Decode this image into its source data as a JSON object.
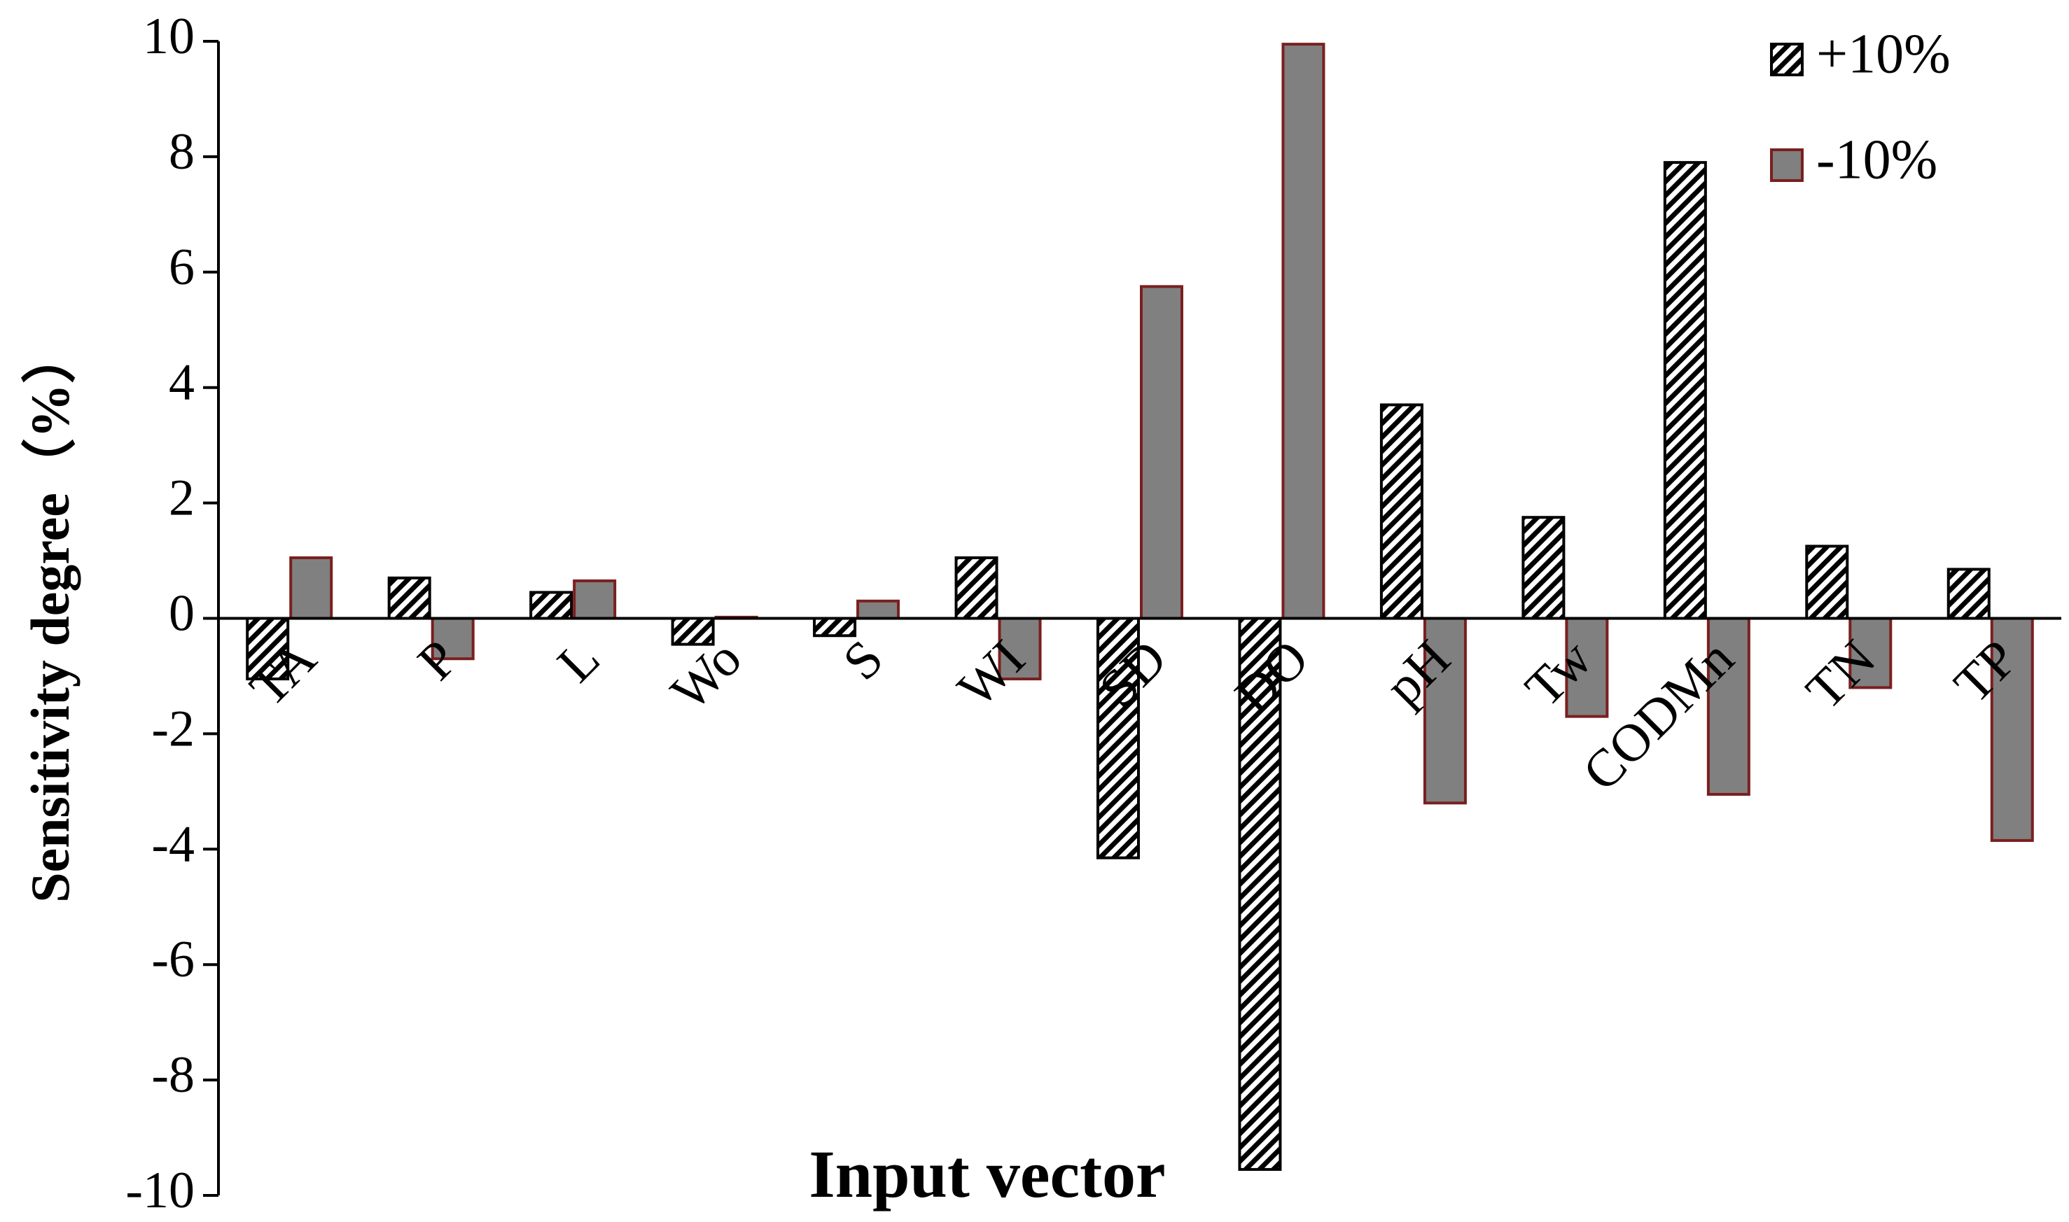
{
  "chart_data": {
    "type": "bar",
    "xlabel": "Input vector",
    "ylabel": "Sensitivity degree（%）",
    "categories": [
      "TA",
      "P",
      "L",
      "Wo",
      "S",
      "WI",
      "SD",
      "DO",
      "pH",
      "Tw",
      "CODMn",
      "TN",
      "TP"
    ],
    "series": [
      {
        "name": "+10%",
        "color": "#000000",
        "hatch": "diagonal",
        "values": [
          -1.05,
          0.7,
          0.45,
          -0.45,
          -0.3,
          1.05,
          -4.15,
          -9.55,
          3.7,
          1.75,
          7.9,
          1.25,
          0.85
        ]
      },
      {
        "name": "-10%",
        "color": "#808080",
        "edgecolor": "#7a1f1f",
        "values": [
          1.05,
          -0.7,
          0.65,
          0.02,
          0.3,
          -1.05,
          5.75,
          9.95,
          -3.2,
          -1.7,
          -3.05,
          -1.2,
          -3.85
        ]
      }
    ],
    "ylim": [
      -10,
      10
    ],
    "yticks": [
      -10,
      -8,
      -6,
      -4,
      -2,
      0,
      2,
      4,
      6,
      8,
      10
    ],
    "legend": "upper-right"
  }
}
